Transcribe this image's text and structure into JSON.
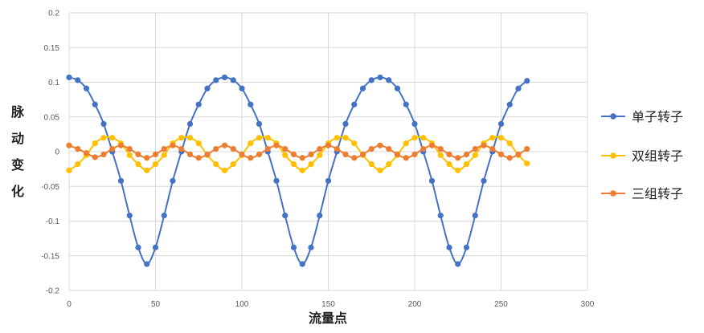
{
  "chart_data": {
    "type": "scatter",
    "title": "",
    "xlabel": "流量点",
    "ylabel": "脉动变化",
    "xlim": [
      0,
      300
    ],
    "ylim": [
      -0.2,
      0.2
    ],
    "x_ticks": [
      "0",
      "50",
      "100",
      "150",
      "200",
      "250",
      "300"
    ],
    "y_ticks": [
      "0.2",
      "0.15",
      "0.1",
      "0.05",
      "0",
      "-0.05",
      "-0.1",
      "-0.15",
      "-0.2"
    ],
    "grid": true,
    "legend_position": "right",
    "x": [
      0,
      5,
      10,
      15,
      20,
      25,
      30,
      35,
      40,
      45,
      50,
      55,
      60,
      65,
      70,
      75,
      80,
      85,
      90,
      95,
      100,
      105,
      110,
      115,
      120,
      125,
      130,
      135,
      140,
      145,
      150,
      155,
      160,
      165,
      170,
      175,
      180,
      185,
      190,
      195,
      200,
      205,
      210,
      215,
      220,
      225,
      230,
      235,
      240,
      245,
      250,
      255,
      260,
      265
    ],
    "series": [
      {
        "name": "单子转子",
        "color": "#4472C4",
        "values": [
          0.107,
          0.103,
          0.091,
          0.068,
          0.04,
          0.0,
          -0.042,
          -0.092,
          -0.138,
          -0.162,
          -0.138,
          -0.092,
          -0.042,
          0.0,
          0.04,
          0.068,
          0.091,
          0.103,
          0.107,
          0.103,
          0.091,
          0.068,
          0.04,
          0.0,
          -0.042,
          -0.092,
          -0.138,
          -0.162,
          -0.138,
          -0.092,
          -0.042,
          0.0,
          0.04,
          0.068,
          0.091,
          0.103,
          0.107,
          0.103,
          0.091,
          0.068,
          0.04,
          0.0,
          -0.042,
          -0.092,
          -0.138,
          -0.162,
          -0.138,
          -0.092,
          -0.042,
          0.0,
          0.04,
          0.068,
          0.091,
          0.102
        ]
      },
      {
        "name": "双组转子",
        "color": "#FFC000",
        "values": [
          -0.027,
          -0.018,
          -0.005,
          0.012,
          0.02,
          0.02,
          0.012,
          -0.005,
          -0.018,
          -0.027,
          -0.018,
          -0.005,
          0.012,
          0.02,
          0.02,
          0.012,
          -0.005,
          -0.018,
          -0.027,
          -0.018,
          -0.005,
          0.012,
          0.02,
          0.02,
          0.012,
          -0.005,
          -0.018,
          -0.027,
          -0.018,
          -0.005,
          0.012,
          0.02,
          0.02,
          0.012,
          -0.005,
          -0.018,
          -0.027,
          -0.018,
          -0.005,
          0.012,
          0.02,
          0.02,
          0.012,
          -0.005,
          -0.018,
          -0.027,
          -0.018,
          -0.005,
          0.012,
          0.02,
          0.02,
          0.012,
          -0.005,
          -0.017
        ]
      },
      {
        "name": "三组转子",
        "color": "#ED7D31",
        "values": [
          0.009,
          0.004,
          -0.002,
          -0.008,
          -0.004,
          0.004,
          0.009,
          0.004,
          -0.004,
          -0.009,
          -0.004,
          0.004,
          0.009,
          0.004,
          -0.004,
          -0.009,
          -0.004,
          0.004,
          0.009,
          0.004,
          -0.004,
          -0.009,
          -0.004,
          0.004,
          0.009,
          0.004,
          -0.004,
          -0.009,
          -0.004,
          0.004,
          0.009,
          0.004,
          -0.004,
          -0.009,
          -0.004,
          0.004,
          0.009,
          0.004,
          -0.004,
          -0.009,
          -0.004,
          0.004,
          0.009,
          0.004,
          -0.004,
          -0.009,
          -0.004,
          0.004,
          0.009,
          0.004,
          -0.004,
          -0.009,
          -0.004,
          0.004
        ]
      }
    ]
  }
}
